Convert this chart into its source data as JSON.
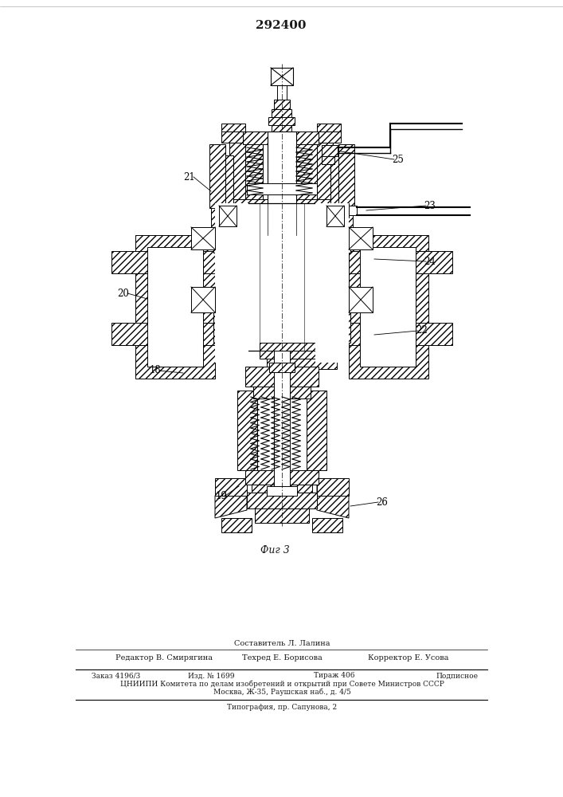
{
  "title": "292400",
  "title_fontsize": 11,
  "title_weight": "bold",
  "fig_width": 7.07,
  "fig_height": 10.0,
  "dpi": 100,
  "bg_color": "#ffffff",
  "drawing_color": "#1a1a1a",
  "fig_caption": "Фиг 3",
  "bottom_texts": [
    "Составитель Л. Лалина",
    "Редактор В. Смирягина",
    "Техред Е. Борисова",
    "Корректор Е. Усова",
    "Заказ 4196/3",
    "Изд. № 1699",
    "Тираж 406",
    "Подписное",
    "ЦНИИПИ Комитета по делам изобретений и открытий при Совете Министров СССР",
    "Москва, Ж-35, Раушская наб., д. 4/5",
    "Типография, пр. Сапунова, 2"
  ]
}
